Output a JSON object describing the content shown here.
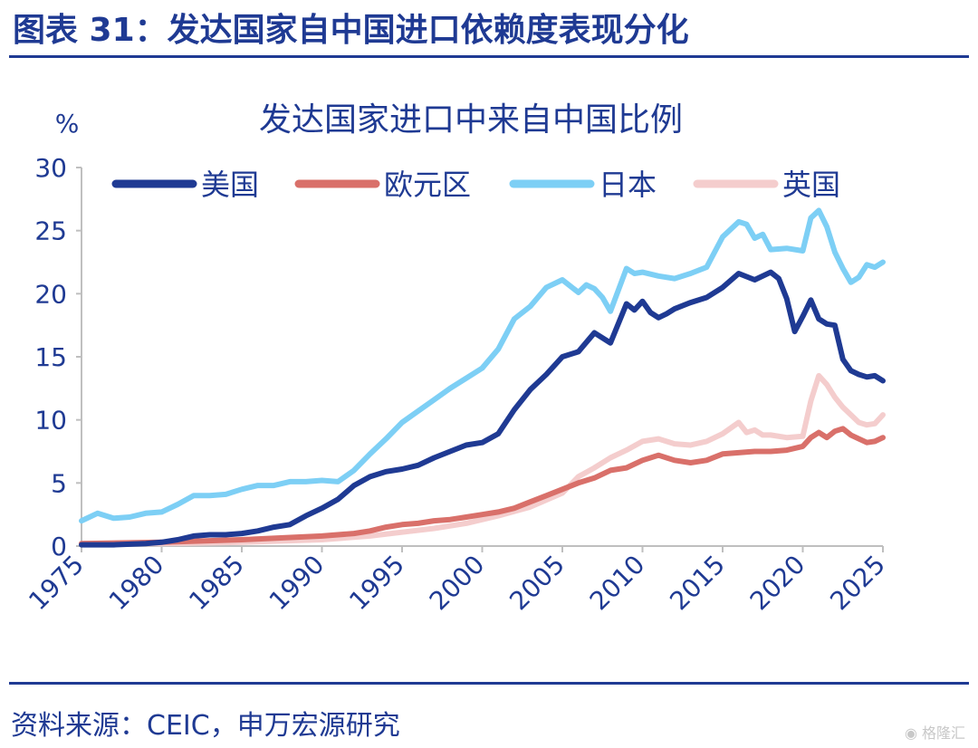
{
  "figure": {
    "title": "图表 31：发达国家自中国进口依赖度表现分化",
    "source": "资料来源：CEIC，申万宏源研究",
    "watermark": "格隆汇"
  },
  "chart_data": {
    "type": "line",
    "title": "发达国家进口中来自中国比例",
    "ylabel": "%",
    "xlabel": "",
    "xlim": [
      1975,
      2025
    ],
    "ylim": [
      0,
      30
    ],
    "yticks": [
      0,
      5,
      10,
      15,
      20,
      25,
      30
    ],
    "xticks": [
      1975,
      1980,
      1985,
      1990,
      1995,
      2000,
      2005,
      2010,
      2015,
      2020,
      2025
    ],
    "grid": false,
    "legend_position": "top",
    "series": [
      {
        "name": "美国",
        "color": "#1f3a93",
        "x": [
          1975,
          1977,
          1979,
          1980,
          1981,
          1982,
          1983,
          1984,
          1985,
          1986,
          1987,
          1988,
          1989,
          1990,
          1991,
          1992,
          1993,
          1994,
          1995,
          1996,
          1997,
          1998,
          1999,
          2000,
          2001,
          2002,
          2003,
          2004,
          2005,
          2006,
          2007,
          2008,
          2009,
          2009.5,
          2010,
          2010.5,
          2011,
          2011.5,
          2012,
          2013,
          2014,
          2015,
          2016,
          2017,
          2018,
          2018.5,
          2019,
          2019.5,
          2020,
          2020.5,
          2021,
          2021.5,
          2022,
          2022.5,
          2023,
          2023.5,
          2024,
          2024.5,
          2025
        ],
        "y": [
          0.1,
          0.1,
          0.2,
          0.3,
          0.5,
          0.8,
          0.9,
          0.9,
          1.0,
          1.2,
          1.5,
          1.7,
          2.4,
          3.0,
          3.7,
          4.8,
          5.5,
          5.9,
          6.1,
          6.4,
          7.0,
          7.5,
          8.0,
          8.2,
          8.9,
          10.8,
          12.4,
          13.6,
          15.0,
          15.4,
          16.9,
          16.1,
          19.2,
          18.7,
          19.4,
          18.5,
          18.1,
          18.4,
          18.8,
          19.3,
          19.7,
          20.5,
          21.6,
          21.1,
          21.7,
          21.2,
          19.6,
          17.0,
          18.2,
          19.5,
          18.0,
          17.6,
          17.5,
          14.8,
          13.9,
          13.6,
          13.4,
          13.5,
          13.1
        ]
      },
      {
        "name": "欧元区",
        "color": "#d9706a",
        "x": [
          1975,
          1980,
          1985,
          1990,
          1992,
          1993,
          1994,
          1995,
          1996,
          1997,
          1998,
          1999,
          2000,
          2001,
          2002,
          2003,
          2004,
          2005,
          2006,
          2007,
          2008,
          2009,
          2010,
          2011,
          2012,
          2013,
          2014,
          2015,
          2016,
          2017,
          2018,
          2019,
          2020,
          2020.5,
          2021,
          2021.5,
          2022,
          2022.5,
          2023,
          2023.5,
          2024,
          2024.5,
          2025
        ],
        "y": [
          0.2,
          0.3,
          0.5,
          0.8,
          1.0,
          1.2,
          1.5,
          1.7,
          1.8,
          2.0,
          2.1,
          2.3,
          2.5,
          2.7,
          3.0,
          3.5,
          4.0,
          4.5,
          5.0,
          5.4,
          6.0,
          6.2,
          6.8,
          7.2,
          6.8,
          6.6,
          6.8,
          7.3,
          7.4,
          7.5,
          7.5,
          7.6,
          7.9,
          8.6,
          9.0,
          8.6,
          9.1,
          9.3,
          8.8,
          8.5,
          8.2,
          8.3,
          8.6
        ]
      },
      {
        "name": "日本",
        "color": "#7dcff5",
        "x": [
          1975,
          1976,
          1977,
          1978,
          1979,
          1980,
          1981,
          1982,
          1983,
          1984,
          1985,
          1986,
          1987,
          1988,
          1989,
          1990,
          1991,
          1992,
          1993,
          1994,
          1995,
          1996,
          1997,
          1998,
          1999,
          2000,
          2001,
          2002,
          2003,
          2004,
          2005,
          2006,
          2006.5,
          2007,
          2007.5,
          2008,
          2009,
          2009.5,
          2010,
          2011,
          2012,
          2013,
          2014,
          2015,
          2016,
          2016.5,
          2017,
          2017.5,
          2018,
          2019,
          2020,
          2020.5,
          2021,
          2021.5,
          2022,
          2022.5,
          2023,
          2023.5,
          2024,
          2024.5,
          2025
        ],
        "y": [
          2.0,
          2.6,
          2.2,
          2.3,
          2.6,
          2.7,
          3.3,
          4.0,
          4.0,
          4.1,
          4.5,
          4.8,
          4.8,
          5.1,
          5.1,
          5.2,
          5.1,
          6.0,
          7.3,
          8.5,
          9.8,
          10.7,
          11.6,
          12.5,
          13.3,
          14.1,
          15.6,
          18.0,
          19.0,
          20.5,
          21.1,
          20.1,
          20.7,
          20.4,
          19.7,
          18.6,
          22.0,
          21.6,
          21.7,
          21.4,
          21.2,
          21.6,
          22.1,
          24.5,
          25.7,
          25.5,
          24.4,
          24.7,
          23.5,
          23.6,
          23.4,
          26.0,
          26.6,
          25.3,
          23.3,
          22.0,
          20.9,
          21.3,
          22.3,
          22.1,
          22.5
        ]
      },
      {
        "name": "英国",
        "color": "#f4cdcd",
        "x": [
          1975,
          1980,
          1985,
          1990,
          1993,
          1995,
          1997,
          1999,
          2001,
          2003,
          2005,
          2006,
          2007,
          2008,
          2009,
          2010,
          2011,
          2012,
          2013,
          2014,
          2015,
          2016,
          2016.5,
          2017,
          2017.5,
          2018,
          2019,
          2020,
          2020.5,
          2021,
          2021.5,
          2022,
          2022.5,
          2023,
          2023.5,
          2024,
          2024.5,
          2025
        ],
        "y": [
          0.2,
          0.2,
          0.3,
          0.5,
          0.8,
          1.1,
          1.4,
          1.8,
          2.4,
          3.1,
          4.2,
          5.5,
          6.2,
          7.0,
          7.6,
          8.3,
          8.5,
          8.1,
          8.0,
          8.3,
          8.9,
          9.8,
          9.0,
          9.2,
          8.8,
          8.8,
          8.6,
          8.7,
          11.5,
          13.5,
          12.8,
          11.8,
          11.0,
          10.4,
          9.8,
          9.6,
          9.7,
          10.4
        ]
      }
    ]
  }
}
